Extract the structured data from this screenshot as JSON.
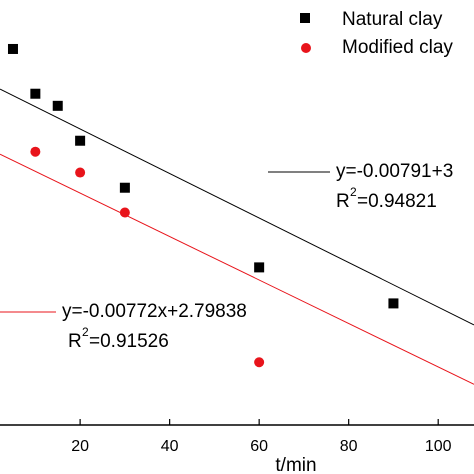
{
  "chart_data": {
    "type": "scatter",
    "x_label": "t/min",
    "xlim": [
      2.1,
      108
    ],
    "ylim": [
      1.82,
      3.33
    ],
    "xticks": [
      20,
      40,
      60,
      80,
      100
    ],
    "series": [
      {
        "name": "Natural clay",
        "color": "#000000",
        "marker": "square",
        "x": [
          5,
          10,
          15,
          20,
          30,
          60,
          90
        ],
        "values": [
          3.156,
          2.997,
          2.954,
          2.83,
          2.663,
          2.38,
          2.252
        ],
        "fit": {
          "slope": -0.00791,
          "intercept": 3.03
        },
        "equation": "y=-0.00791+3",
        "r2_prefix": "R",
        "r2_power": "2",
        "r2_rest": "=0.94821"
      },
      {
        "name": "Modified clay",
        "color": "#e8141b",
        "marker": "circle",
        "x": [
          10,
          20,
          30,
          60
        ],
        "values": [
          2.791,
          2.717,
          2.575,
          2.043
        ],
        "fit": {
          "slope": -0.00772,
          "intercept": 2.79838
        },
        "equation": "y=-0.00772x+2.79838",
        "r2_prefix": "R",
        "r2_power": "2",
        "r2_rest": "=0.91526"
      }
    ]
  }
}
